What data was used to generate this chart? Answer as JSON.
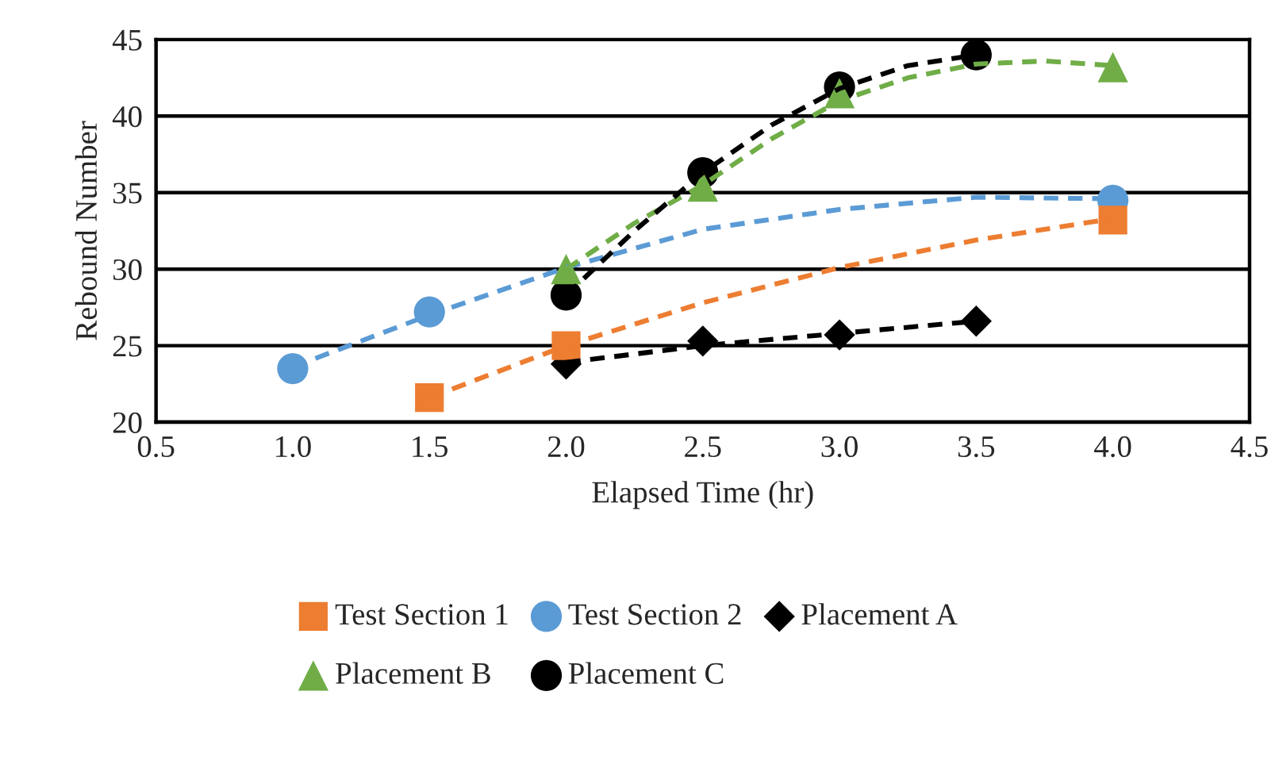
{
  "chart_data": {
    "type": "scatter",
    "xlabel": "Elapsed Time (hr)",
    "ylabel": "Rebound Number",
    "xlim": [
      0.5,
      4.5
    ],
    "xticks": [
      {
        "value": 0.5,
        "label": "0.5"
      },
      {
        "value": 1.0,
        "label": "1.0"
      },
      {
        "value": 1.5,
        "label": "1.5"
      },
      {
        "value": 2.0,
        "label": "2.0"
      },
      {
        "value": 2.5,
        "label": "2.5"
      },
      {
        "value": 3.0,
        "label": "3.0"
      },
      {
        "value": 3.5,
        "label": "3.5"
      },
      {
        "value": 4.0,
        "label": "4.0"
      },
      {
        "value": 4.5,
        "label": "4.5"
      }
    ],
    "ylim": [
      20,
      45
    ],
    "yticks": [
      20,
      25,
      30,
      35,
      40,
      45
    ],
    "grid": "y",
    "legend": "bottom",
    "series": [
      {
        "name": "Test Section 1",
        "marker": "square",
        "color": "#ed7d31",
        "x": [
          1.5,
          2.0,
          4.0
        ],
        "values": [
          21.6,
          25.0,
          33.2
        ]
      },
      {
        "name": "Test Section 2",
        "marker": "circle",
        "color": "#5b9bd5",
        "x": [
          1.0,
          1.5,
          4.0
        ],
        "values": [
          23.5,
          27.2,
          34.5
        ]
      },
      {
        "name": "Placement A",
        "marker": "diamond",
        "color": "#000000",
        "x": [
          2.0,
          2.5,
          3.0,
          3.5
        ],
        "values": [
          23.8,
          25.3,
          25.7,
          26.6
        ]
      },
      {
        "name": "Placement B",
        "marker": "triangle",
        "color": "#70ad47",
        "x": [
          2.0,
          2.5,
          3.0,
          4.0
        ],
        "values": [
          30.0,
          35.4,
          41.5,
          43.2
        ]
      },
      {
        "name": "Placement C",
        "marker": "circle",
        "color": "#000000",
        "x": [
          2.0,
          2.5,
          3.0,
          3.5
        ],
        "values": [
          28.3,
          36.3,
          41.9,
          44.0
        ]
      },
      {
        "type": "line",
        "line_style": "dashed",
        "color": "#ed7d31",
        "x": [
          1.5,
          2.0,
          2.5,
          3.0,
          3.5,
          4.0
        ],
        "values": [
          21.6,
          25.0,
          27.8,
          30.1,
          31.9,
          33.3
        ]
      },
      {
        "type": "line",
        "line_style": "dashed",
        "color": "#5b9bd5",
        "x": [
          1.0,
          1.5,
          2.0,
          2.5,
          3.0,
          3.5,
          4.0
        ],
        "values": [
          23.6,
          27.0,
          30.1,
          32.6,
          33.9,
          34.7,
          34.6
        ]
      },
      {
        "type": "line",
        "line_style": "dashed",
        "color": "#000000",
        "x": [
          2.0,
          2.5,
          3.0,
          3.5
        ],
        "values": [
          23.9,
          25.0,
          25.8,
          26.6
        ]
      },
      {
        "type": "line",
        "line_style": "dashed",
        "color": "#70ad47",
        "x": [
          2.0,
          2.25,
          2.5,
          2.75,
          3.0,
          3.25,
          3.5,
          3.75,
          4.0
        ],
        "values": [
          30.0,
          33.0,
          35.5,
          38.5,
          41.0,
          42.5,
          43.4,
          43.6,
          43.3
        ]
      },
      {
        "type": "line",
        "line_style": "dashed",
        "color": "#000000",
        "x": [
          2.0,
          2.25,
          2.5,
          2.75,
          3.0,
          3.25,
          3.5
        ],
        "values": [
          28.3,
          32.5,
          36.3,
          39.4,
          41.8,
          43.3,
          44.0
        ]
      }
    ]
  }
}
